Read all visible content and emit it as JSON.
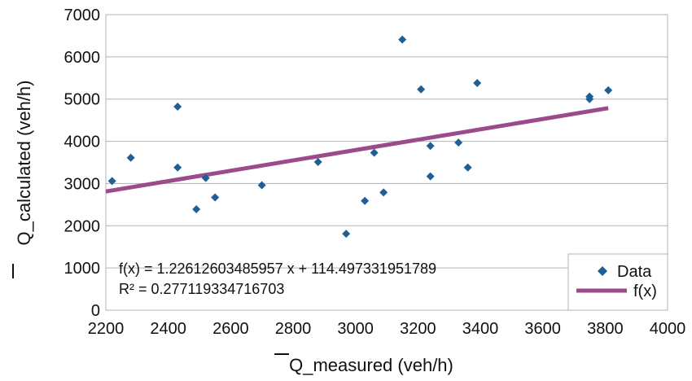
{
  "chart_data": {
    "type": "scatter",
    "xlabel": "Q_measured (veh/h)",
    "ylabel": "Q_calculated (veh/h)",
    "xlim": [
      2200,
      4000
    ],
    "ylim": [
      0,
      7000
    ],
    "x_ticks": [
      2200,
      2400,
      2600,
      2800,
      3000,
      3200,
      3400,
      3600,
      3800,
      4000
    ],
    "y_ticks": [
      0,
      1000,
      2000,
      3000,
      4000,
      5000,
      6000,
      7000
    ],
    "grid": "horizontal",
    "legend": "bottom-right",
    "series": [
      {
        "name": "Data",
        "marker": "diamond",
        "color": "#1f5f96",
        "points": [
          [
            2220,
            3060
          ],
          [
            2280,
            3610
          ],
          [
            2430,
            4820
          ],
          [
            2430,
            3380
          ],
          [
            2490,
            2390
          ],
          [
            2520,
            3130
          ],
          [
            2550,
            2670
          ],
          [
            2700,
            2960
          ],
          [
            2880,
            3510
          ],
          [
            2970,
            1810
          ],
          [
            3030,
            2590
          ],
          [
            3060,
            3730
          ],
          [
            3090,
            2790
          ],
          [
            3150,
            6410
          ],
          [
            3210,
            5230
          ],
          [
            3240,
            3890
          ],
          [
            3240,
            3170
          ],
          [
            3330,
            3970
          ],
          [
            3360,
            3380
          ],
          [
            3390,
            5380
          ],
          [
            3750,
            5060
          ],
          [
            3750,
            5000
          ],
          [
            3810,
            5210
          ]
        ]
      },
      {
        "name": "f(x)",
        "type": "line",
        "color": "#9b4a8c",
        "slope": 1.22612603485957,
        "intercept": 114.497331951789,
        "x_range": [
          2200,
          3810
        ]
      }
    ],
    "annotations": {
      "equation": "f(x) = 1.22612603485957 x + 114.497331951789",
      "r_squared": "R² = 0.277119334716703"
    }
  }
}
